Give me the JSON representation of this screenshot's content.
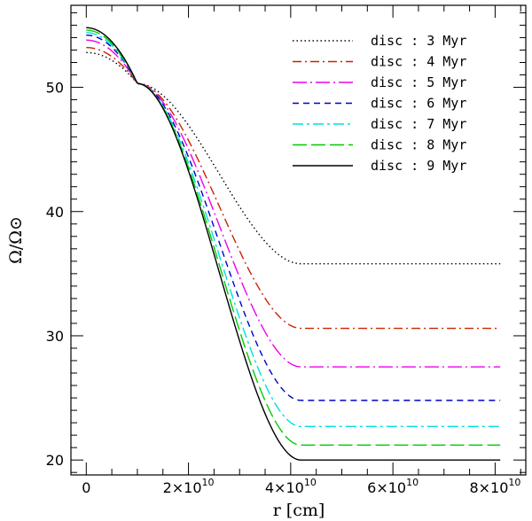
{
  "chart_data": {
    "type": "line",
    "xlabel": "r [cm]",
    "ylabel": "Ω/Ω⊙",
    "xlim": [
      -3000000000.0,
      86000000000.0
    ],
    "ylim": [
      18.8,
      56.6
    ],
    "x_ticks": [
      {
        "value": 0,
        "label": "0"
      },
      {
        "value": 20000000000.0,
        "mant": "2×10",
        "exp": "10"
      },
      {
        "value": 40000000000.0,
        "mant": "4×10",
        "exp": "10"
      },
      {
        "value": 60000000000.0,
        "mant": "6×10",
        "exp": "10"
      },
      {
        "value": 80000000000.0,
        "mant": "8×10",
        "exp": "10"
      }
    ],
    "y_ticks": [
      20,
      30,
      40,
      50
    ],
    "legend_position": "top-right",
    "series": [
      {
        "name": "disc : 3 Myr",
        "color": "#000000",
        "dash": "1.5,3",
        "core": 52.8,
        "plateau": 35.8
      },
      {
        "name": "disc : 4 Myr",
        "color": "#cc2200",
        "dash": "10,4,2,4",
        "core": 53.2,
        "plateau": 30.6
      },
      {
        "name": "disc : 5 Myr",
        "color": "#ee00ee",
        "dash": "16,4,2,4",
        "core": 53.8,
        "plateau": 27.5
      },
      {
        "name": "disc : 6 Myr",
        "color": "#0000cc",
        "dash": "7,5",
        "core": 54.2,
        "plateau": 24.8
      },
      {
        "name": "disc : 7 Myr",
        "color": "#00e0e0",
        "dash": "12,4,3,4",
        "core": 54.4,
        "plateau": 22.7
      },
      {
        "name": "disc : 8 Myr",
        "color": "#00cc00",
        "dash": "16,5",
        "core": 54.6,
        "plateau": 21.2
      },
      {
        "name": "disc : 9 Myr",
        "color": "#000000",
        "dash": "",
        "core": 54.8,
        "plateau": 20.0
      }
    ],
    "r_pivot": 10000000000.0,
    "omega_pivot": 50.3,
    "r_transition": 42000000000.0,
    "r_max": 81000000000.0
  }
}
